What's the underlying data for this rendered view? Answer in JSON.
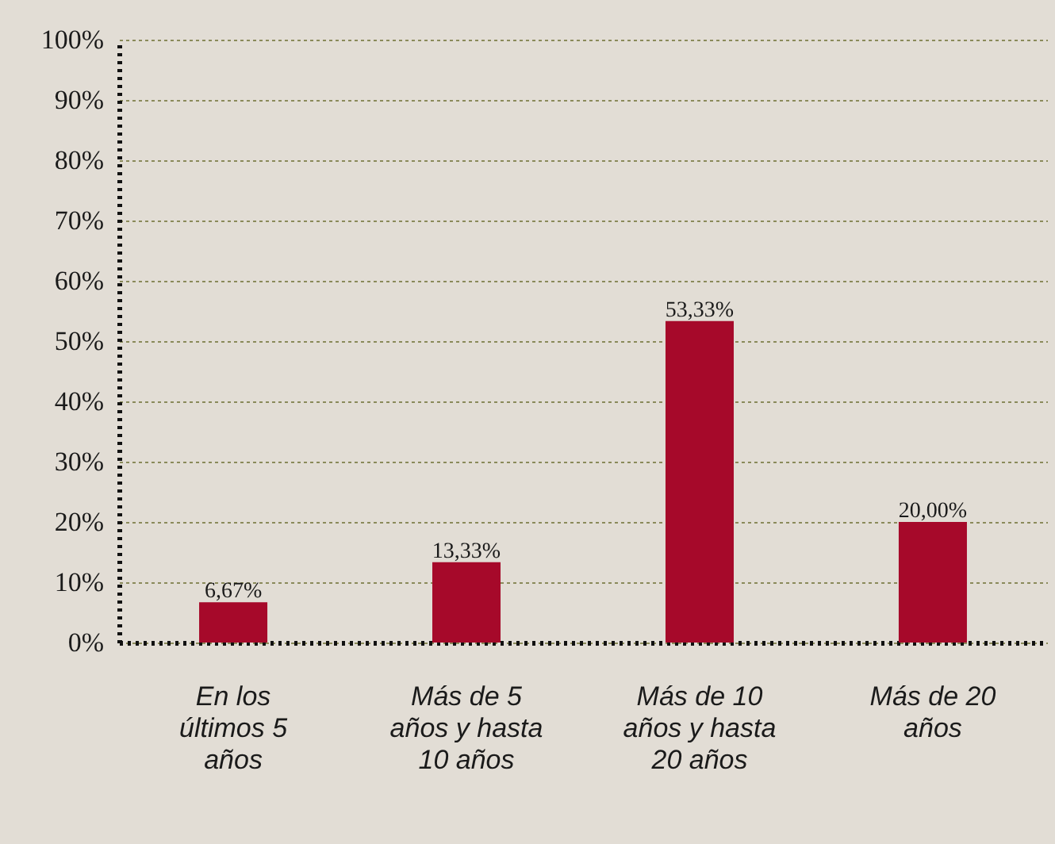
{
  "chart_data": {
    "type": "bar",
    "categories": [
      "En los últimos 5 años",
      "Más de 5 años y hasta 10 años",
      "Más de 10 años y hasta 20 años",
      "Más de 20 años"
    ],
    "values": [
      6.67,
      13.33,
      53.33,
      20.0
    ],
    "value_labels": [
      "6,67%",
      "13,33%",
      "53,33%",
      "20,00%"
    ],
    "color": "#a6092a",
    "ylim": [
      0,
      100
    ],
    "yticks": [
      {
        "value": 0,
        "label": "0%"
      },
      {
        "value": 10,
        "label": "10%"
      },
      {
        "value": 20,
        "label": "20%"
      },
      {
        "value": 30,
        "label": "30%"
      },
      {
        "value": 40,
        "label": "40%"
      },
      {
        "value": 50,
        "label": "50%"
      },
      {
        "value": 60,
        "label": "60%"
      },
      {
        "value": 70,
        "label": "70%"
      },
      {
        "value": 80,
        "label": "80%"
      },
      {
        "value": 90,
        "label": "90%"
      },
      {
        "value": 100,
        "label": "100%"
      }
    ],
    "grid": "y"
  }
}
